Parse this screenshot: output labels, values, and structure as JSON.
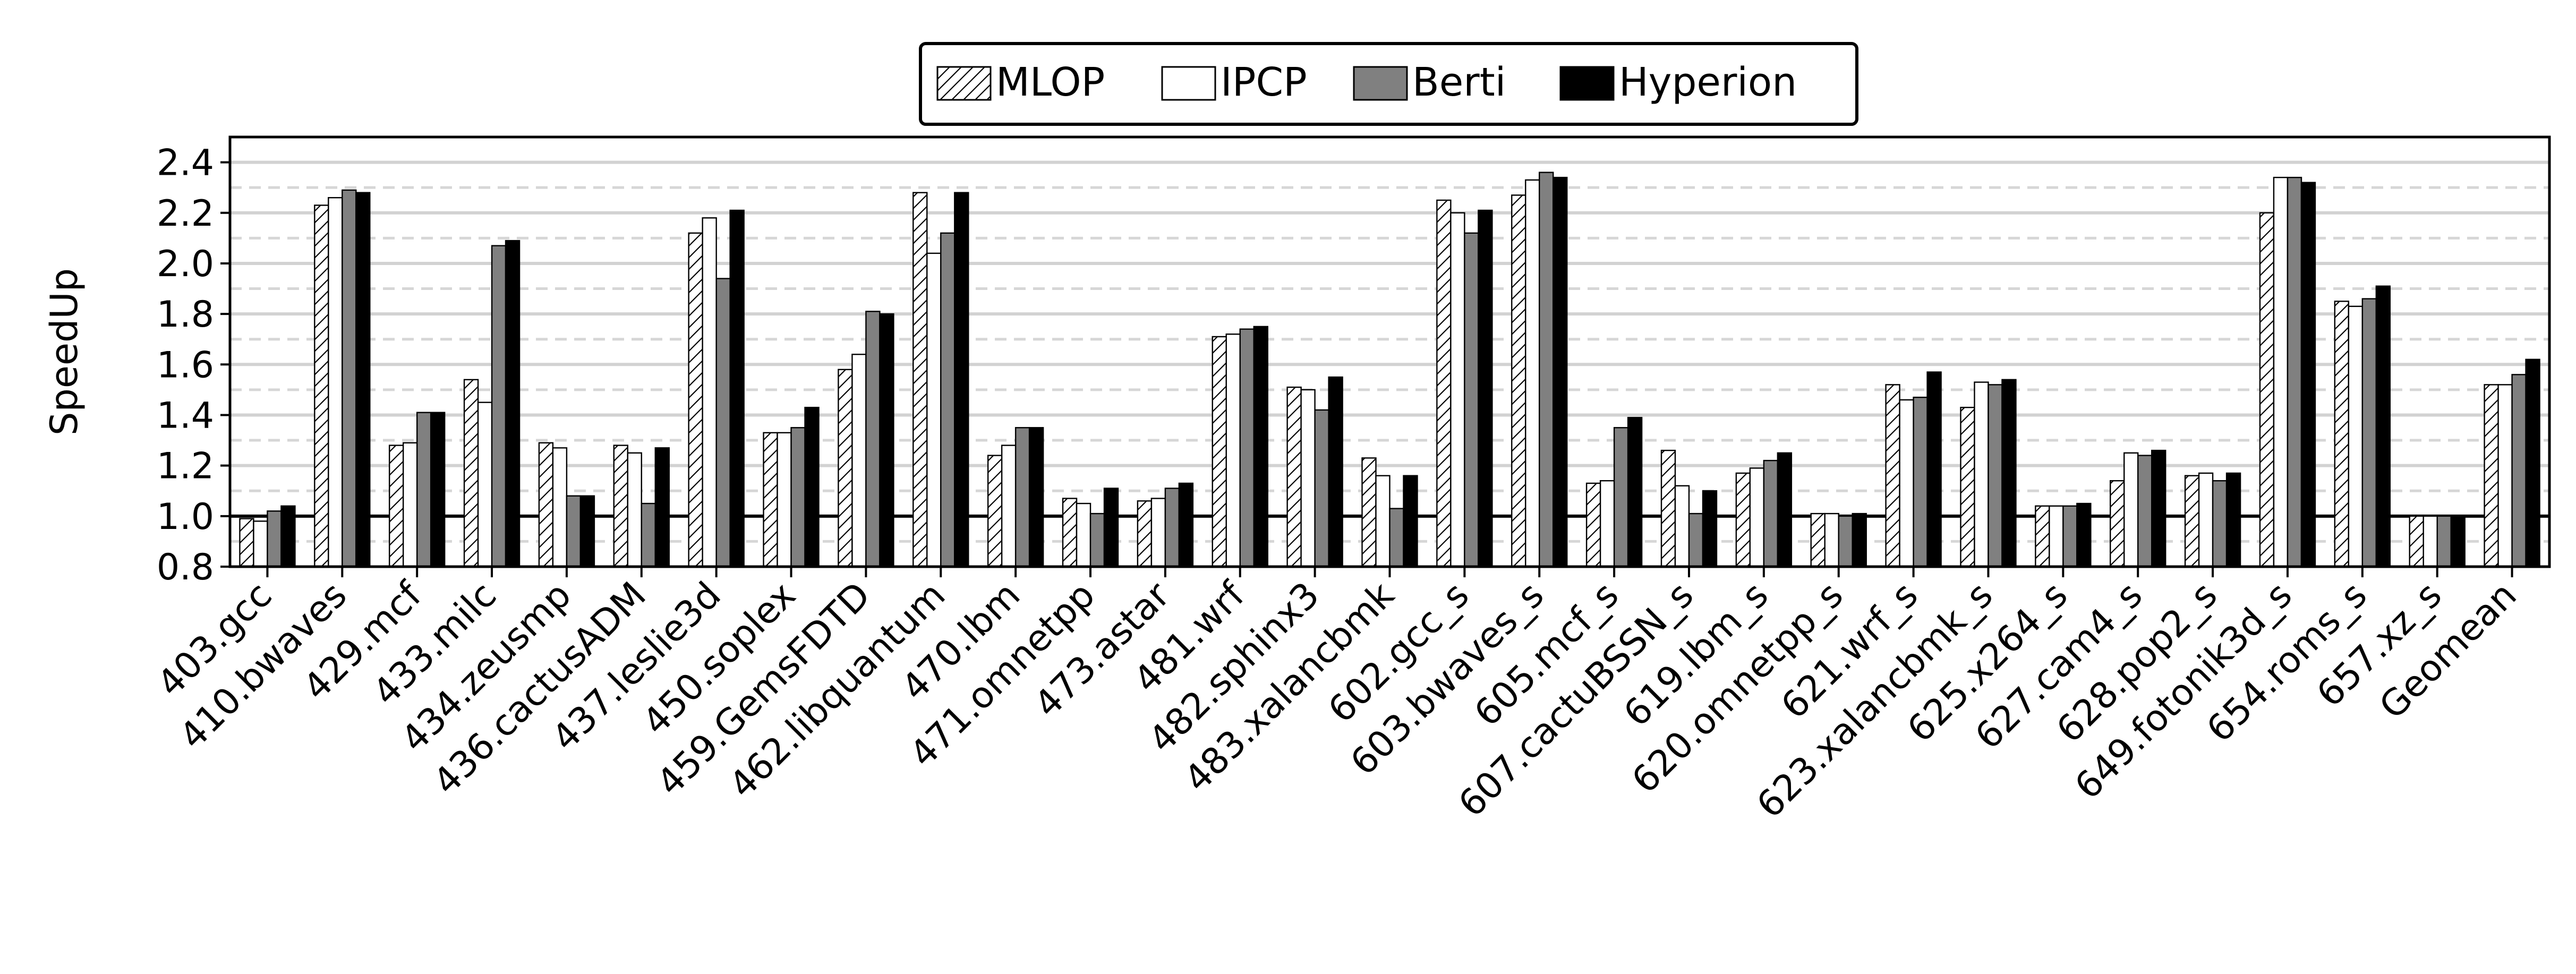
{
  "chart_data": {
    "type": "bar",
    "ylabel": "SpeedUp",
    "ylim": [
      0.8,
      2.5
    ],
    "yticks": [
      "0.8",
      "1.0",
      "1.2",
      "1.4",
      "1.6",
      "1.8",
      "2.0",
      "2.2",
      "2.4"
    ],
    "grid": "horizontal",
    "baseline": 1.0,
    "legend_position": "top-center",
    "categories": [
      "403.gcc",
      "410.bwaves",
      "429.mcf",
      "433.milc",
      "434.zeusmp",
      "436.cactusADM",
      "437.leslie3d",
      "450.soplex",
      "459.GemsFDTD",
      "462.libquantum",
      "470.lbm",
      "471.omnetpp",
      "473.astar",
      "481.wrf",
      "482.sphinx3",
      "483.xalancbmk",
      "602.gcc_s",
      "603.bwaves_s",
      "605.mcf_s",
      "607.cactuBSSN_s",
      "619.lbm_s",
      "620.omnetpp_s",
      "621.wrf_s",
      "623.xalancbmk_s",
      "625.x264_s",
      "627.cam4_s",
      "628.pop2_s",
      "649.fotonik3d_s",
      "654.roms_s",
      "657.xz_s",
      "Geomean"
    ],
    "series": [
      {
        "name": "MLOP",
        "fill": "hatch",
        "color": "#ffffff",
        "values": [
          0.99,
          2.23,
          1.28,
          1.54,
          1.29,
          1.28,
          2.12,
          1.33,
          1.58,
          2.28,
          1.24,
          1.07,
          1.06,
          1.71,
          1.51,
          1.23,
          2.25,
          2.27,
          1.13,
          1.26,
          1.17,
          1.01,
          1.52,
          1.43,
          1.04,
          1.14,
          1.16,
          2.2,
          1.85,
          1.0,
          1.52
        ]
      },
      {
        "name": "IPCP",
        "fill": "solid",
        "color": "#ffffff",
        "values": [
          0.98,
          2.26,
          1.29,
          1.45,
          1.27,
          1.25,
          2.18,
          1.33,
          1.64,
          2.04,
          1.28,
          1.05,
          1.07,
          1.72,
          1.5,
          1.16,
          2.2,
          2.33,
          1.14,
          1.12,
          1.19,
          1.01,
          1.46,
          1.53,
          1.04,
          1.25,
          1.17,
          2.34,
          1.83,
          1.0,
          1.52
        ]
      },
      {
        "name": "Berti",
        "fill": "solid",
        "color": "#808080",
        "values": [
          1.02,
          2.29,
          1.41,
          2.07,
          1.08,
          1.05,
          1.94,
          1.35,
          1.81,
          2.12,
          1.35,
          1.01,
          1.11,
          1.74,
          1.42,
          1.03,
          2.12,
          2.36,
          1.35,
          1.01,
          1.22,
          1.0,
          1.47,
          1.52,
          1.04,
          1.24,
          1.14,
          2.34,
          1.86,
          1.0,
          1.56
        ]
      },
      {
        "name": "Hyperion",
        "fill": "solid",
        "color": "#000000",
        "values": [
          1.04,
          2.28,
          1.41,
          2.09,
          1.08,
          1.27,
          2.21,
          1.43,
          1.8,
          2.28,
          1.35,
          1.11,
          1.13,
          1.75,
          1.55,
          1.16,
          2.21,
          2.34,
          1.39,
          1.1,
          1.25,
          1.01,
          1.57,
          1.54,
          1.05,
          1.26,
          1.17,
          2.32,
          1.91,
          1.0,
          1.62
        ]
      }
    ]
  }
}
